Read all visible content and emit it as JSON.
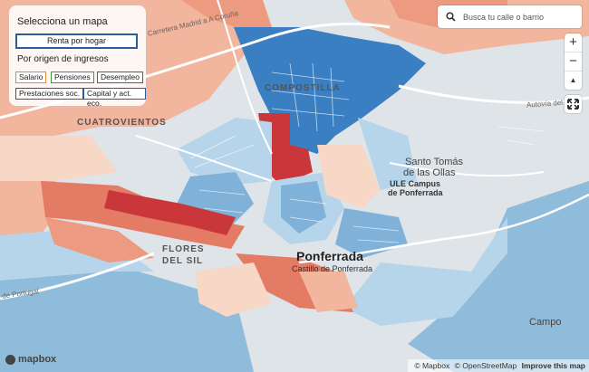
{
  "panel": {
    "title": "Selecciona un mapa",
    "main_button": "Renta por hogar",
    "subtitle": "Por origen de ingresos",
    "chips": [
      {
        "label": "Salario",
        "color": "#e08a2c"
      },
      {
        "label": "Pensiones",
        "color": "#3c9a3c"
      },
      {
        "label": "Desempleo",
        "color": "#c8302c"
      },
      {
        "label": "Prestaciones soc.",
        "color": "#6a3a9c"
      },
      {
        "label": "Capital y act. eco.",
        "color": "#2b5d9a"
      }
    ]
  },
  "search": {
    "placeholder": "Busca tu calle o barrio",
    "icon": "search-icon"
  },
  "controls": {
    "zoom_in": "+",
    "zoom_out": "−",
    "compass": "▲",
    "fullscreen_icon": "fullscreen-icon"
  },
  "labels": {
    "compostilla": "COMPOSTILLA",
    "cuatrovientos": "CUATROVIENTOS",
    "flores_del_sil_1": "FLORES",
    "flores_del_sil_2": "DEL SIL",
    "ponferrada": "Ponferrada",
    "castillo": "Castillo de Ponferrada",
    "santo_tomas_1": "Santo Tomás",
    "santo_tomas_2": "de las Ollas",
    "ule_1": "ULE Campus",
    "ule_2": "de Ponferrada",
    "campo": "Campo",
    "road_coruna": "Carretera Madrid a A Coruña",
    "road_autovia": "Autovía del N",
    "road_portugal": "de Portugal"
  },
  "brand": "mapbox",
  "attribution": {
    "mapbox": "© Mapbox",
    "osm": "© OpenStreetMap",
    "improve": "Improve this map"
  },
  "colors": {
    "dark_red": "#c9373a",
    "mid_red": "#e47c65",
    "light_red": "#f2b59d",
    "pale_red": "#f7d7c6",
    "dark_blue": "#3a7fc1",
    "mid_blue": "#7fb1d9",
    "light_blue": "#b6d4ea",
    "water": "#8ebcda",
    "land": "#dfe4e8"
  }
}
